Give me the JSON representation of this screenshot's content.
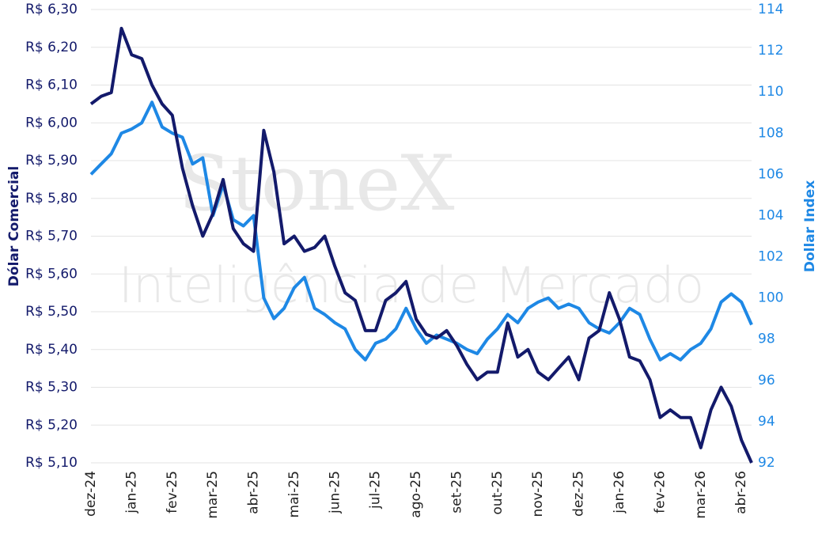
{
  "chart_data": {
    "type": "line",
    "y_label": "Dólar Comercial",
    "y2_label": "Dollar Index",
    "annotations": [
      "StoneX",
      "Inteligência de Mercado"
    ],
    "categories": [
      "dez-24",
      null,
      null,
      null,
      "jan-25",
      null,
      null,
      null,
      "fev-25",
      null,
      null,
      null,
      "mar-25",
      null,
      null,
      null,
      "abr-25",
      null,
      null,
      null,
      "mai-25",
      null,
      null,
      null,
      "jun-25",
      null,
      null,
      null,
      "jul-25",
      null,
      null,
      null,
      "ago-25",
      null,
      null,
      null,
      "set-25",
      null,
      null,
      null,
      "out-25",
      null,
      null,
      null,
      "nov-25",
      null,
      null,
      null,
      "dez-25",
      null,
      null,
      null,
      "jan-26",
      null,
      null,
      null,
      "fev-26",
      null,
      null,
      null,
      "mar-26",
      null,
      null,
      null,
      "abr-26",
      null
    ],
    "series": [
      {
        "name": "Dólar Comercial",
        "color": "#131a6b",
        "axis": "y",
        "values": [
          6.05,
          6.07,
          6.08,
          6.25,
          6.18,
          6.17,
          6.1,
          6.05,
          6.02,
          5.88,
          5.78,
          5.7,
          5.76,
          5.85,
          5.72,
          5.68,
          5.66,
          5.98,
          5.87,
          5.68,
          5.7,
          5.66,
          5.67,
          5.7,
          5.62,
          5.55,
          5.53,
          5.45,
          5.45,
          5.53,
          5.55,
          5.58,
          5.48,
          5.44,
          5.43,
          5.45,
          5.41,
          5.36,
          5.32,
          5.34,
          5.34,
          5.47,
          5.38,
          5.4,
          5.34,
          5.32,
          5.35,
          5.38,
          5.32,
          5.43,
          5.45,
          5.55,
          5.48,
          5.38,
          5.37,
          5.32,
          5.22,
          5.24,
          5.22,
          5.22,
          5.14,
          5.24,
          5.3,
          5.25,
          5.16,
          5.1
        ]
      },
      {
        "name": "Dollar Index",
        "color": "#1e88e5",
        "axis": "y2",
        "values": [
          106.0,
          106.5,
          107.0,
          108.0,
          108.2,
          108.5,
          109.5,
          108.3,
          108.0,
          107.8,
          106.5,
          106.8,
          104.0,
          105.5,
          103.8,
          103.5,
          104.0,
          100.0,
          99.0,
          99.5,
          100.5,
          101.0,
          99.5,
          99.2,
          98.8,
          98.5,
          97.5,
          97.0,
          97.8,
          98.0,
          98.5,
          99.5,
          98.5,
          97.8,
          98.2,
          98.0,
          97.8,
          97.5,
          97.3,
          98.0,
          98.5,
          99.2,
          98.8,
          99.5,
          99.8,
          100.0,
          99.5,
          99.7,
          99.5,
          98.8,
          98.5,
          98.3,
          98.8,
          99.5,
          99.2,
          98.0,
          97.0,
          97.3,
          97.0,
          97.5,
          97.8,
          98.5,
          99.8,
          100.2,
          99.8,
          98.7
        ]
      }
    ],
    "ylim": [
      5.1,
      6.3
    ],
    "yticks": [
      {
        "value": 5.1,
        "label": "R$ 5,10"
      },
      {
        "value": 5.2,
        "label": "R$ 5,20"
      },
      {
        "value": 5.3,
        "label": "R$ 5,30"
      },
      {
        "value": 5.4,
        "label": "R$ 5,40"
      },
      {
        "value": 5.5,
        "label": "R$ 5,50"
      },
      {
        "value": 5.6,
        "label": "R$ 5,60"
      },
      {
        "value": 5.7,
        "label": "R$ 5,70"
      },
      {
        "value": 5.8,
        "label": "R$ 5,80"
      },
      {
        "value": 5.9,
        "label": "R$ 5,90"
      },
      {
        "value": 6.0,
        "label": "R$ 6,00"
      },
      {
        "value": 6.1,
        "label": "R$ 6,10"
      },
      {
        "value": 6.2,
        "label": "R$ 6,20"
      },
      {
        "value": 6.3,
        "label": "R$ 6,30"
      }
    ],
    "y2lim": [
      92,
      114
    ],
    "y2ticks": [
      92,
      94,
      96,
      98,
      100,
      102,
      104,
      106,
      108,
      110,
      112,
      114
    ],
    "grid": true,
    "y_label_color": "#131a6b",
    "y2_label_color": "#1e88e5"
  }
}
